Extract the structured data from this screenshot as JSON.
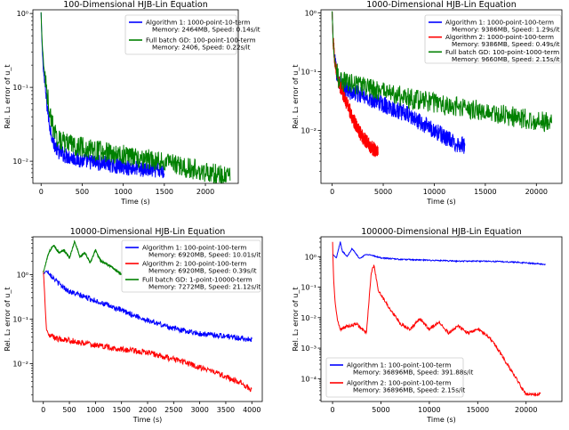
{
  "chart_data": [
    {
      "type": "line",
      "title": "100-Dimensional HJB-Lin Equation",
      "xlabel": "Time (s)",
      "ylabel": "Rel. L₂ error of u_t",
      "xlim": [
        -100,
        2400
      ],
      "ylim_log10": [
        -2.3,
        0.05
      ],
      "yscale": "log",
      "xticks": [
        0,
        500,
        1000,
        1500,
        2000
      ],
      "yticks": [
        {
          "exp": -2,
          "label": "10⁻²"
        },
        {
          "exp": -1,
          "label": "10⁻¹"
        },
        {
          "exp": 0,
          "label": "10⁰"
        }
      ],
      "legend_position": "top-right",
      "series": [
        {
          "name": "Algorithm 1: 1000-point-10-term",
          "detail": "Memory: 2464MB, Speed: 0.14s/it",
          "color": "#0000ff",
          "x": [
            0,
            10,
            30,
            60,
            100,
            150,
            200,
            300,
            500,
            800,
            1100,
            1400,
            1500
          ],
          "y": [
            1.0,
            0.4,
            0.15,
            0.07,
            0.03,
            0.017,
            0.013,
            0.011,
            0.0095,
            0.0085,
            0.0075,
            0.007,
            0.0068
          ],
          "noise": 0.22
        },
        {
          "name": "Full batch GD: 100-point-100-term",
          "detail": "Memory: 2406, Speed: 0.22s/it",
          "color": "#008000",
          "x": [
            0,
            10,
            30,
            60,
            100,
            150,
            200,
            300,
            500,
            800,
            1100,
            1400,
            1700,
            2000,
            2300
          ],
          "y": [
            1.0,
            0.45,
            0.2,
            0.1,
            0.045,
            0.025,
            0.019,
            0.016,
            0.014,
            0.012,
            0.0105,
            0.0092,
            0.0078,
            0.0065,
            0.0055
          ],
          "noise": 0.28
        }
      ]
    },
    {
      "type": "line",
      "title": "1000-Dimensional HJB-Lin Equation",
      "xlabel": "Time (s)",
      "ylabel": "Rel. L₂ error of u_t",
      "xlim": [
        -1100,
        22500
      ],
      "ylim_log10": [
        -2.9,
        0.05
      ],
      "yscale": "log",
      "xticks": [
        0,
        5000,
        10000,
        15000,
        20000
      ],
      "yticks": [
        {
          "exp": -2,
          "label": "10⁻²"
        },
        {
          "exp": -1,
          "label": "10⁻¹"
        },
        {
          "exp": 0,
          "label": "10⁰"
        }
      ],
      "legend_position": "top-right",
      "series": [
        {
          "name": "Algorithm 1: 1000-point-100-term",
          "detail": "Memory: 9386MB, Speed: 1.29s/it",
          "color": "#0000ff",
          "x": [
            0,
            100,
            300,
            600,
            1000,
            2000,
            4000,
            7000,
            10000,
            12000,
            13000
          ],
          "y": [
            1.0,
            0.3,
            0.12,
            0.065,
            0.05,
            0.04,
            0.03,
            0.018,
            0.009,
            0.0055,
            0.005
          ],
          "noise": 0.3
        },
        {
          "name": "Algorithm 2: 1000-point-100-term",
          "detail": "Memory: 9386MB, Speed: 0.49s/it",
          "color": "#ff0000",
          "x": [
            0,
            100,
            300,
            600,
            1000,
            1500,
            2000,
            2500,
            3000,
            3500,
            4000,
            4500
          ],
          "y": [
            1.0,
            0.3,
            0.12,
            0.065,
            0.04,
            0.025,
            0.015,
            0.01,
            0.007,
            0.0055,
            0.0045,
            0.004
          ],
          "noise": 0.25
        },
        {
          "name": "Full batch GD: 100-point-1000-term",
          "detail": "Memory: 9660MB, Speed: 2.15s/it",
          "color": "#008000",
          "x": [
            0,
            100,
            300,
            600,
            1000,
            2000,
            5000,
            8000,
            11000,
            14000,
            17000,
            20000,
            21500
          ],
          "y": [
            1.0,
            0.3,
            0.12,
            0.07,
            0.06,
            0.055,
            0.04,
            0.03,
            0.024,
            0.02,
            0.016,
            0.013,
            0.012
          ],
          "noise": 0.35
        }
      ]
    },
    {
      "type": "line",
      "title": "10000-Dimensional HJB-Lin Equation",
      "xlabel": "Time (s)",
      "ylabel": "Rel. L₂ error of u_t",
      "xlim": [
        -200,
        4200
      ],
      "ylim_log10": [
        -2.85,
        0.85
      ],
      "yscale": "log",
      "xticks": [
        0,
        500,
        1000,
        1500,
        2000,
        2500,
        3000,
        3500,
        4000
      ],
      "yticks": [
        {
          "exp": -2,
          "label": "10⁻²"
        },
        {
          "exp": -1,
          "label": "10⁻¹"
        },
        {
          "exp": 0,
          "label": "10⁰"
        }
      ],
      "legend_position": "top-right",
      "series": [
        {
          "name": "Algorithm 1: 100-point-100-term",
          "detail": "Memory: 6920MB, Speed: 10.01s/it",
          "color": "#0000ff",
          "x": [
            0,
            50,
            100,
            200,
            300,
            500,
            1000,
            1500,
            2000,
            2500,
            3000,
            3500,
            4000
          ],
          "y": [
            1.0,
            1.2,
            1.1,
            0.8,
            0.6,
            0.4,
            0.25,
            0.15,
            0.09,
            0.06,
            0.045,
            0.04,
            0.033
          ],
          "noise": 0.12
        },
        {
          "name": "Algorithm 2: 100-point-100-term",
          "detail": "Memory: 6920MB, Speed: 0.39s/it",
          "color": "#ff0000",
          "x": [
            0,
            20,
            40,
            60,
            100,
            150,
            250,
            500,
            1000,
            1500,
            2000,
            2500,
            3000,
            3500,
            3800,
            4000
          ],
          "y": [
            1.2,
            0.5,
            0.15,
            0.06,
            0.045,
            0.04,
            0.035,
            0.032,
            0.025,
            0.02,
            0.017,
            0.012,
            0.008,
            0.005,
            0.0035,
            0.0025
          ],
          "noise": 0.13
        },
        {
          "name": "Full batch GD: 1-point-10000-term",
          "detail": "Memory: 7272MB, Speed: 21.12s/it",
          "color": "#008000",
          "x": [
            0,
            100,
            200,
            300,
            400,
            500,
            600,
            700,
            800,
            900,
            1000,
            1100,
            1300,
            1500
          ],
          "y": [
            1.1,
            3.0,
            4.5,
            3.0,
            3.5,
            2.3,
            5.5,
            2.5,
            3.0,
            1.8,
            3.5,
            2.0,
            1.5,
            1.0
          ],
          "noise": 0.05
        }
      ]
    },
    {
      "type": "line",
      "title": "100000-Dimensional HJB-Lin Equation",
      "xlabel": "Time (s)",
      "ylabel": "Rel. L₂ error of u_t",
      "xlim": [
        -1200,
        23700
      ],
      "ylim_log10": [
        -4.75,
        0.65
      ],
      "yscale": "log",
      "xticks": [
        0,
        5000,
        10000,
        15000,
        20000
      ],
      "yticks": [
        {
          "exp": -4,
          "label": "10⁻⁴"
        },
        {
          "exp": -3,
          "label": "10⁻³"
        },
        {
          "exp": -2,
          "label": "10⁻²"
        },
        {
          "exp": -1,
          "label": "10⁻¹"
        },
        {
          "exp": 0,
          "label": "10⁰"
        }
      ],
      "legend_position": "bottom-left",
      "series": [
        {
          "name": "Algorithm 1: 100-point-100-term",
          "detail": "Memory: 36896MB, Speed: 391.88s/it",
          "color": "#0000ff",
          "x": [
            0,
            400,
            800,
            1000,
            1500,
            2000,
            2800,
            3500,
            5000,
            7000,
            10000,
            13000,
            16000,
            19000,
            22000
          ],
          "y": [
            1.2,
            0.9,
            3.0,
            1.5,
            1.0,
            1.8,
            0.85,
            1.2,
            0.9,
            0.8,
            0.75,
            0.7,
            0.7,
            0.65,
            0.55
          ],
          "noise": 0.04
        },
        {
          "name": "Algorithm 2: 100-point-100-term",
          "detail": "Memory: 36896MB, Speed: 2.15s/it",
          "color": "#ff0000",
          "x": [
            0,
            100,
            250,
            500,
            800,
            1500,
            2500,
            3500,
            4000,
            4300,
            4700,
            5500,
            7000,
            8000,
            9000,
            10000,
            11000,
            12000,
            13000,
            14000,
            15000,
            16000,
            17000,
            18000,
            19000,
            19500,
            20000,
            21000,
            21500
          ],
          "y": [
            3.0,
            0.2,
            0.035,
            0.008,
            0.004,
            0.005,
            0.006,
            0.003,
            0.3,
            0.5,
            0.08,
            0.03,
            0.006,
            0.004,
            0.009,
            0.004,
            0.007,
            0.003,
            0.005,
            0.003,
            0.004,
            0.0025,
            0.001,
            0.0003,
            0.0001,
            5e-05,
            3e-05,
            3e-05,
            3e-05
          ],
          "noise": 0.1
        }
      ]
    }
  ]
}
